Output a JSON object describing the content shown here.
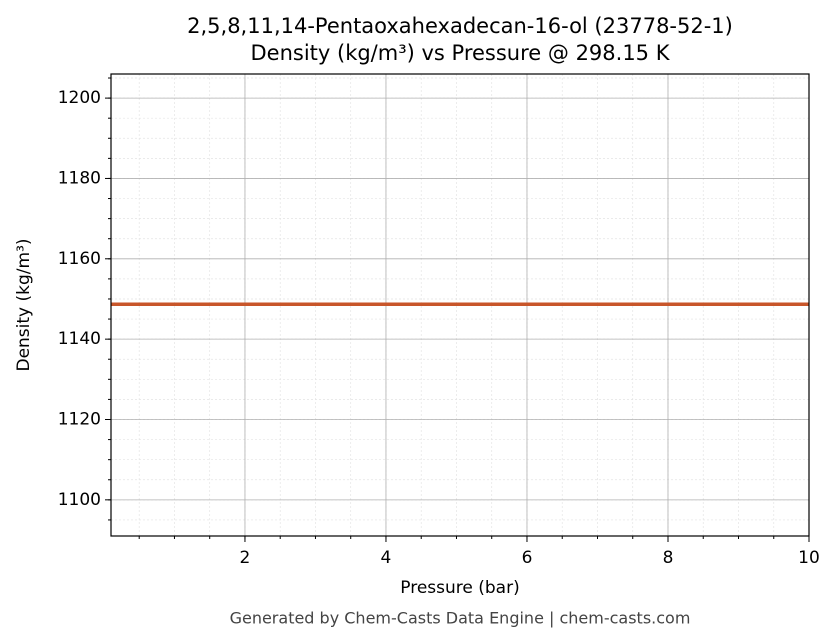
{
  "chart_data": {
    "type": "line",
    "title": "2,5,8,11,14-Pentaoxahexadecan-16-ol (23778-52-1)",
    "subtitle": "Density (kg/m³) vs Pressure @ 298.15 K",
    "x_label": "Pressure (bar)",
    "y_label": "Density (kg/m³)",
    "footer": "Generated by Chem-Casts Data Engine | chem-casts.com",
    "x": [
      0.1,
      1,
      2,
      3,
      4,
      5,
      6,
      7,
      8,
      9,
      10
    ],
    "series": [
      {
        "name": "Density",
        "color": "#c8562a",
        "values": [
          1148.7,
          1148.7,
          1148.7,
          1148.7,
          1148.7,
          1148.7,
          1148.7,
          1148.7,
          1148.7,
          1148.7,
          1148.7
        ]
      }
    ],
    "xlim": [
      0.1,
      10
    ],
    "xticks": [
      2,
      4,
      6,
      8,
      10
    ],
    "ylim": [
      1091,
      1206
    ],
    "yticks": [
      1100,
      1120,
      1140,
      1160,
      1180,
      1200
    ],
    "grid": true,
    "minor_grid": true
  }
}
